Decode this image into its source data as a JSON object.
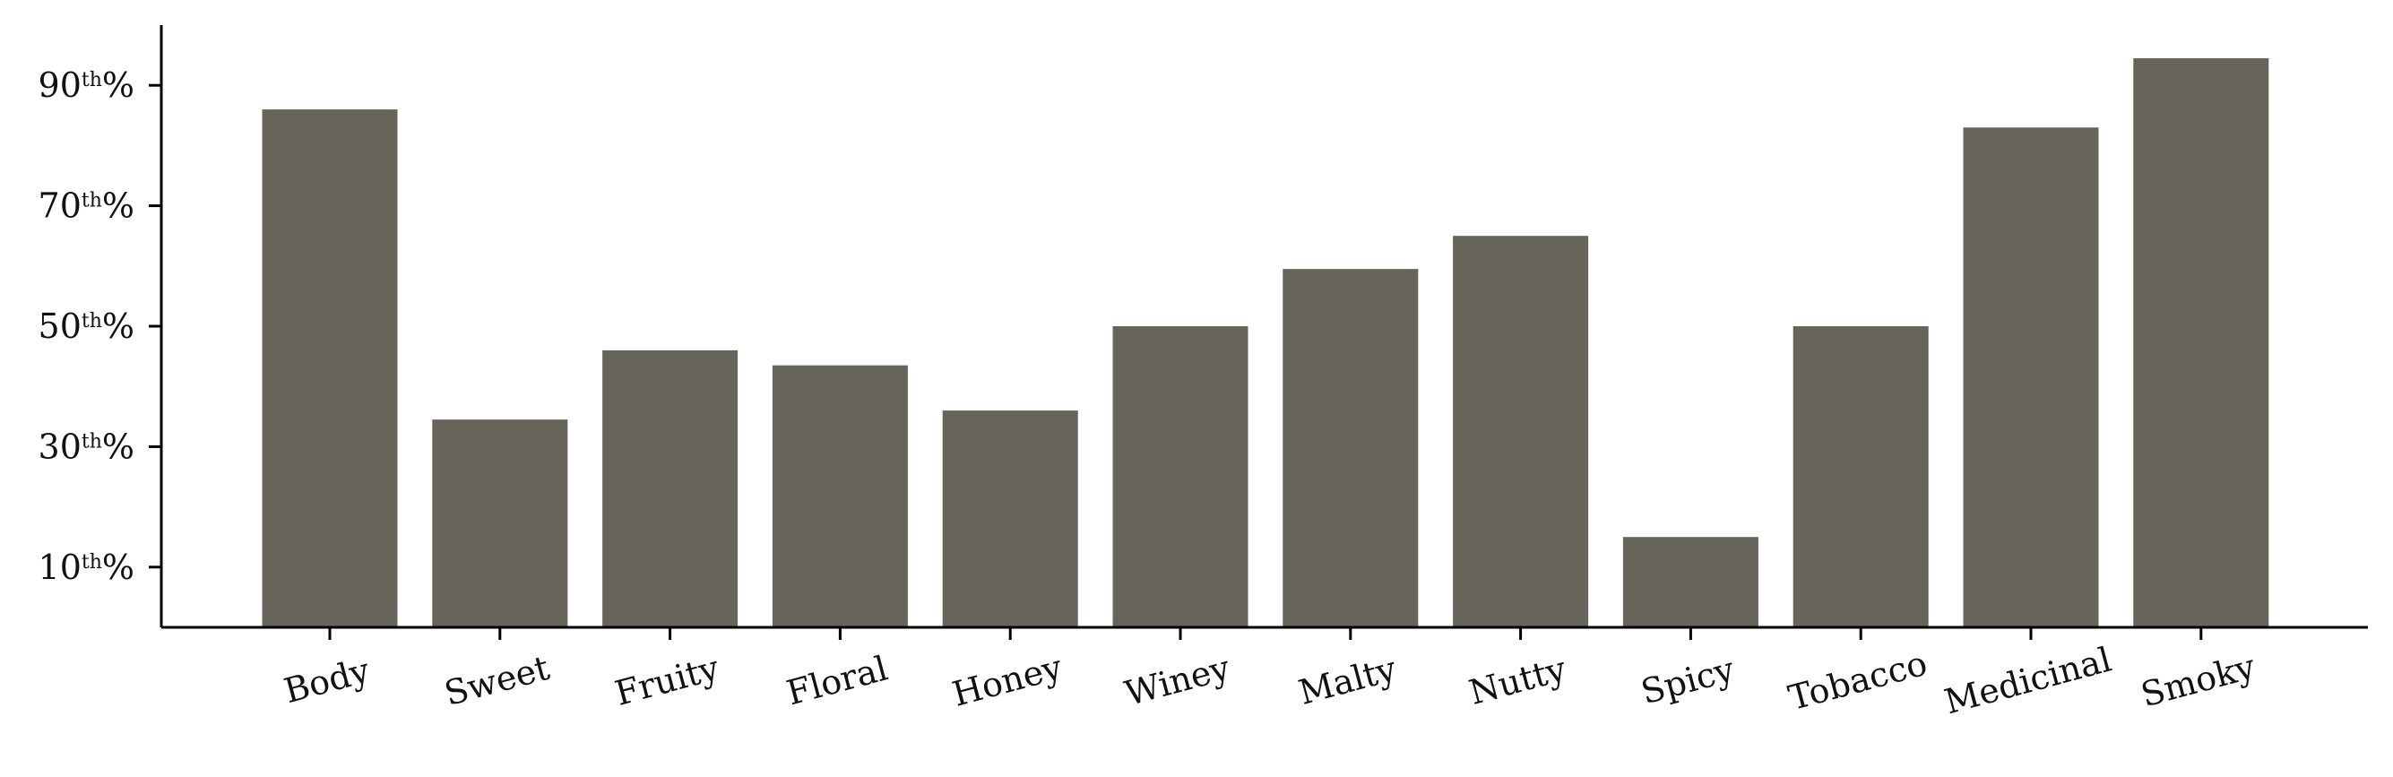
{
  "chart_data": {
    "type": "bar",
    "title": "",
    "xlabel": "",
    "ylabel": "",
    "categories": [
      "Body",
      "Sweet",
      "Fruity",
      "Floral",
      "Honey",
      "Winey",
      "Malty",
      "Nutty",
      "Spicy",
      "Tobacco",
      "Medicinal",
      "Smoky"
    ],
    "values": [
      86,
      34.5,
      46,
      43.5,
      36,
      50,
      59.5,
      65,
      15,
      50,
      83,
      94.5
    ],
    "ylim": [
      0,
      100
    ],
    "yticks": [
      {
        "value": 10,
        "number": "10",
        "suffix": "th",
        "unit": "%"
      },
      {
        "value": 30,
        "number": "30",
        "suffix": "th",
        "unit": "%"
      },
      {
        "value": 50,
        "number": "50",
        "suffix": "th",
        "unit": "%"
      },
      {
        "value": 70,
        "number": "70",
        "suffix": "th",
        "unit": "%"
      },
      {
        "value": 90,
        "number": "90",
        "suffix": "th",
        "unit": "%"
      }
    ],
    "bar_color": "#67645b",
    "axis_color": "#000000",
    "grid": false,
    "legend": "none"
  }
}
